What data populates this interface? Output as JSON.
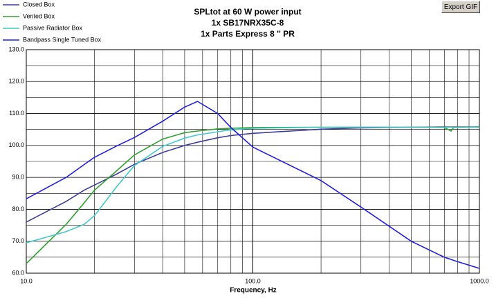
{
  "chart_data": {
    "type": "line",
    "title_lines": [
      "SPLtot at 60 W power input",
      "1x SB17NRX35C-8",
      "1x Parts Express 8 '' PR"
    ],
    "x_label": "Frequency, Hz",
    "x": [
      10,
      15,
      18,
      20,
      25,
      30,
      40,
      50,
      57,
      70,
      80,
      100,
      200,
      300,
      500,
      700,
      750,
      770,
      1000
    ],
    "series": [
      {
        "name": "Closed Box",
        "color": "#3c3c9c",
        "values": [
          76,
          82.5,
          86,
          87.6,
          91,
          94.1,
          97.8,
          100,
          101,
          102.4,
          103.1,
          103.8,
          105.1,
          105.5,
          105.7,
          105.8,
          105.8,
          105.8,
          105.8
        ]
      },
      {
        "name": "Vented Box",
        "color": "#30a030",
        "values": [
          63,
          75.3,
          82,
          86,
          92,
          97,
          102,
          104,
          104.5,
          105.2,
          105.4,
          105.6,
          105.7,
          105.7,
          105.7,
          105.6,
          104.5,
          105.6,
          105.8
        ]
      },
      {
        "name": "Passive Radiator Box",
        "color": "#40c8c8",
        "values": [
          69.5,
          73,
          75.3,
          78,
          87,
          93.7,
          99.7,
          102.3,
          103.3,
          104.3,
          104.9,
          105.4,
          105.7,
          105.7,
          105.7,
          105.7,
          105.7,
          105.7,
          105.7
        ]
      },
      {
        "name": "Bandpass Single Tuned Box",
        "color": "#1e1ee0",
        "values": [
          83.3,
          90,
          94,
          96.3,
          99.8,
          102.5,
          107.6,
          112,
          113.8,
          110,
          105.6,
          99.5,
          89,
          80.7,
          70,
          65,
          64.3,
          64,
          61.5
        ]
      }
    ],
    "xlim": [
      10,
      1000
    ],
    "xlog": true,
    "xticks": [
      {
        "value": 10,
        "label": "10.0"
      },
      {
        "value": 100,
        "label": "100.0"
      },
      {
        "value": 1000,
        "label": "1000.0"
      }
    ],
    "ylim": [
      60,
      130
    ],
    "yticks": [
      {
        "value": 60,
        "label": "60.0"
      },
      {
        "value": 70,
        "label": "70.0"
      },
      {
        "value": 80,
        "label": "80.0"
      },
      {
        "value": 90,
        "label": "90.0"
      },
      {
        "value": 100,
        "label": "100.0"
      },
      {
        "value": 110,
        "label": "110.0"
      },
      {
        "value": 120,
        "label": "120.0"
      },
      {
        "value": 130,
        "label": "130.0"
      }
    ],
    "grid": true
  },
  "button": "Export GIF"
}
